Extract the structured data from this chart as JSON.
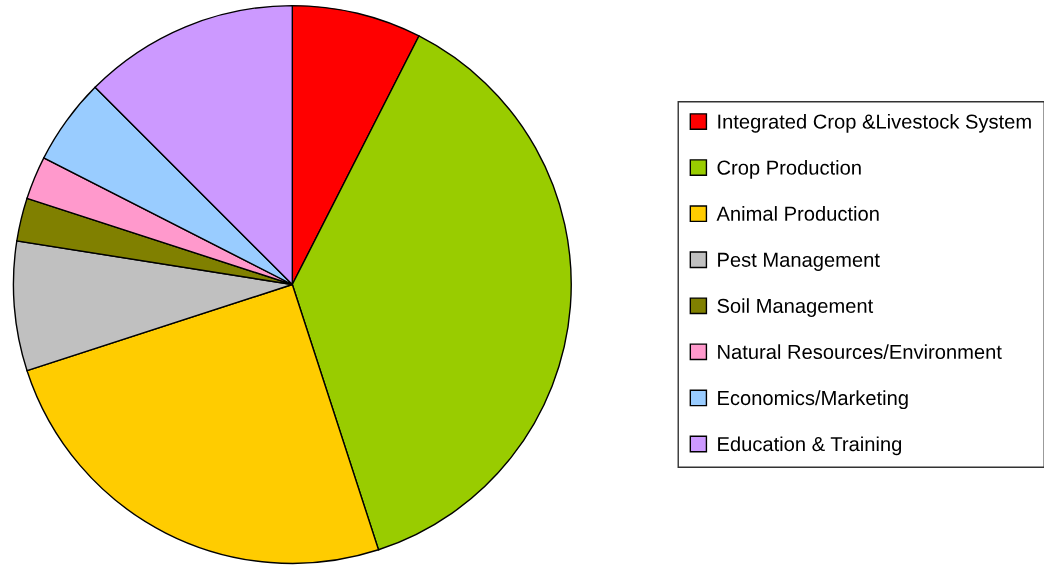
{
  "chart_data": {
    "type": "pie",
    "categories": [
      "Integrated Crop &Livestock System",
      "Crop Production",
      "Animal Production",
      "Pest Management",
      "Soil Management",
      "Natural Resources/Environment",
      "Economics/Marketing",
      "Education & Training"
    ],
    "values": [
      7.5,
      37.5,
      25,
      7.5,
      2.5,
      2.5,
      5,
      12.5
    ],
    "colors": [
      "#ff0000",
      "#99cc00",
      "#ffcc00",
      "#c0c0c0",
      "#808000",
      "#ff99cc",
      "#99ccff",
      "#cc99ff"
    ],
    "legend": "right"
  }
}
